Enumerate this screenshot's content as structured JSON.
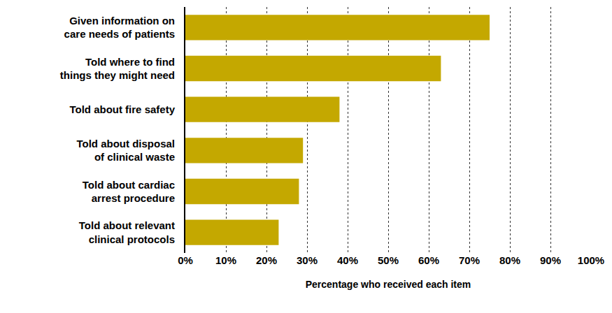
{
  "chart_data": {
    "type": "bar",
    "orientation": "horizontal",
    "categories": [
      "Given information on care needs of patients",
      "Told where to find things they might need",
      "Told about fire safety",
      "Told about disposal of clinical waste",
      "Told about cardiac arrest procedure",
      "Told about relevant clinical protocols"
    ],
    "values": [
      75,
      63,
      38,
      29,
      28,
      23
    ],
    "color": "#c4a800",
    "xlabel": "Percentage who received each item",
    "xlim": [
      0,
      100
    ],
    "xticks": [
      {
        "value": 0,
        "label": "0%"
      },
      {
        "value": 10,
        "label": "10%"
      },
      {
        "value": 20,
        "label": "20%"
      },
      {
        "value": 30,
        "label": "30%"
      },
      {
        "value": 40,
        "label": "40%"
      },
      {
        "value": 50,
        "label": "50%"
      },
      {
        "value": 60,
        "label": "60%"
      },
      {
        "value": 70,
        "label": "70%"
      },
      {
        "value": 80,
        "label": "80%"
      },
      {
        "value": 90,
        "label": "90%"
      },
      {
        "value": 100,
        "label": "100%"
      }
    ],
    "grid": true
  }
}
